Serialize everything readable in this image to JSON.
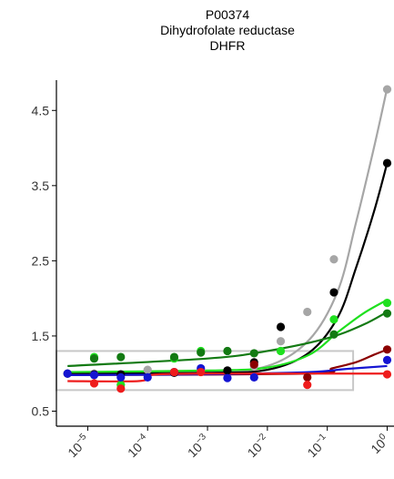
{
  "chart_data": {
    "type": "scatter",
    "title_lines": [
      "P00374",
      "Dihydrofolate reductase",
      "DHFR"
    ],
    "xlabel": "",
    "ylabel": "",
    "x_scale": "log10",
    "xlim": [
      3e-06,
      1.3
    ],
    "ylim": [
      0.3,
      5.0
    ],
    "x_ticks": [
      {
        "value": 1e-05,
        "base": "10",
        "exp": "−5"
      },
      {
        "value": 0.0001,
        "base": "10",
        "exp": "−4"
      },
      {
        "value": 0.001,
        "base": "10",
        "exp": "−3"
      },
      {
        "value": 0.01,
        "base": "10",
        "exp": "−2"
      },
      {
        "value": 0.1,
        "base": "10",
        "exp": "−1"
      },
      {
        "value": 1,
        "base": "10",
        "exp": "0"
      }
    ],
    "y_ticks": [
      {
        "value": 0.5,
        "label": "0.5"
      },
      {
        "value": 1.5,
        "label": "1.5"
      },
      {
        "value": 2.5,
        "label": "2.5"
      },
      {
        "value": 3.5,
        "label": "3.5"
      },
      {
        "value": 4.5,
        "label": "4.5"
      }
    ],
    "grid": false,
    "x": [
      4.6e-06,
      1.28e-05,
      3.57e-05,
      0.0001,
      0.000278,
      0.000774,
      0.00215,
      0.006,
      0.0167,
      0.0464,
      0.129,
      0.36,
      1.0
    ],
    "series": [
      {
        "color": "#a6a6a6",
        "y": [
          null,
          1.0,
          null,
          1.05,
          1.02,
          1.05,
          null,
          1.1,
          1.43,
          1.82,
          2.52,
          null,
          4.78
        ],
        "fit": [
          [
            4.6e-06,
            1.02
          ],
          [
            0.001,
            1.02
          ],
          [
            0.01,
            1.1
          ],
          [
            0.05,
            1.45
          ],
          [
            0.15,
            2.1
          ],
          [
            0.3,
            3.0
          ],
          [
            0.6,
            4.0
          ],
          [
            1.0,
            4.8
          ]
        ]
      },
      {
        "color": "#000000",
        "y": [
          1.0,
          0.99,
          0.99,
          null,
          1.01,
          null,
          1.04,
          1.15,
          1.62,
          null,
          2.08,
          null,
          3.8
        ],
        "fit": [
          [
            4.6e-06,
            1.0
          ],
          [
            0.001,
            1.01
          ],
          [
            0.01,
            1.05
          ],
          [
            0.05,
            1.28
          ],
          [
            0.15,
            1.75
          ],
          [
            0.3,
            2.4
          ],
          [
            0.6,
            3.15
          ],
          [
            1.0,
            3.8
          ]
        ]
      },
      {
        "color": "#1fe01f",
        "y": [
          null,
          1.22,
          0.85,
          null,
          1.2,
          1.3,
          null,
          null,
          1.3,
          null,
          1.72,
          null,
          1.94
        ],
        "fit": [
          [
            4.6e-06,
            1.02
          ],
          [
            0.001,
            1.04
          ],
          [
            0.01,
            1.08
          ],
          [
            0.05,
            1.25
          ],
          [
            0.15,
            1.55
          ],
          [
            0.4,
            1.8
          ],
          [
            1.0,
            1.98
          ]
        ]
      },
      {
        "color": "#137a13",
        "y": [
          null,
          1.2,
          1.22,
          null,
          1.22,
          1.28,
          1.3,
          1.27,
          null,
          null,
          1.52,
          null,
          1.8
        ],
        "fit": [
          [
            4.6e-06,
            1.1
          ],
          [
            0.001,
            1.2
          ],
          [
            0.01,
            1.3
          ],
          [
            0.1,
            1.47
          ],
          [
            0.4,
            1.65
          ],
          [
            1.0,
            1.82
          ]
        ]
      },
      {
        "color": "#8b0000",
        "y": [
          null,
          null,
          null,
          null,
          null,
          null,
          null,
          1.12,
          null,
          0.95,
          null,
          null,
          1.32
        ],
        "fit": [
          [
            4.6e-06,
            0.98
          ],
          [
            0.05,
            1.0
          ],
          [
            0.12,
            1.07
          ],
          [
            0.3,
            1.15
          ],
          [
            0.6,
            1.25
          ],
          [
            1.0,
            1.32
          ]
        ]
      },
      {
        "color": "#1414d2",
        "y": [
          1.0,
          0.98,
          0.95,
          0.95,
          1.02,
          1.07,
          0.94,
          0.95,
          null,
          null,
          null,
          null,
          1.18
        ],
        "fit": [
          [
            4.6e-06,
            0.98
          ],
          [
            0.001,
            0.99
          ],
          [
            0.05,
            1.02
          ],
          [
            0.2,
            1.06
          ],
          [
            1.0,
            1.1
          ]
        ]
      },
      {
        "color": "#ee1c1c",
        "y": [
          null,
          0.87,
          0.8,
          null,
          1.02,
          1.02,
          null,
          null,
          null,
          0.85,
          null,
          null,
          0.99
        ],
        "fit": [
          [
            4.6e-06,
            0.9
          ],
          [
            7e-05,
            0.9
          ],
          [
            0.0001,
            0.96
          ],
          [
            0.00015,
            0.99
          ],
          [
            0.001,
            1.0
          ],
          [
            0.1,
            1.0
          ],
          [
            1.0,
            1.0
          ]
        ]
      }
    ],
    "reference_boxes": [
      {
        "color": "#c8c8c8",
        "x_range": [
          2.4e-06,
          0.27
        ],
        "y_range": [
          0.78,
          1.3
        ]
      }
    ]
  }
}
